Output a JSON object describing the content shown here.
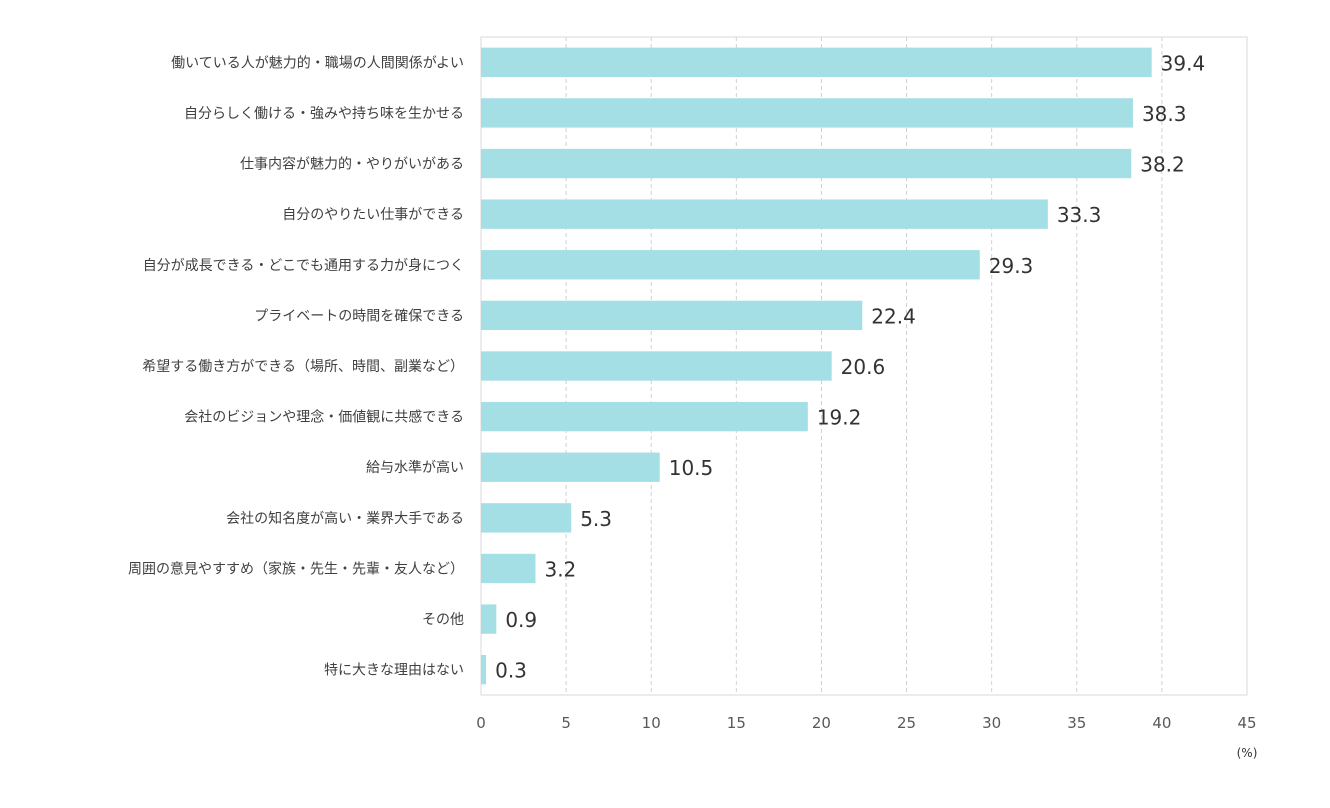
{
  "chart_data": {
    "type": "bar",
    "orientation": "horizontal",
    "categories": [
      "働いている人が魅力的・職場の人間関係がよい",
      "自分らしく働ける・強みや持ち味を生かせる",
      "仕事内容が魅力的・やりがいがある",
      "自分のやりたい仕事ができる",
      "自分が成長できる・どこでも通用する力が身につく",
      "プライベートの時間を確保できる",
      "希望する働き方ができる（場所、時間、副業など）",
      "会社のビジョンや理念・価値観に共感できる",
      "給与水準が高い",
      "会社の知名度が高い・業界大手である",
      "周囲の意見やすすめ（家族・先生・先輩・友人など）",
      "その他",
      "特に大きな理由はない"
    ],
    "values": [
      39.4,
      38.3,
      38.2,
      33.3,
      29.3,
      22.4,
      20.6,
      19.2,
      10.5,
      5.3,
      3.2,
      0.9,
      0.3
    ],
    "value_labels": [
      "39.4",
      "38.3",
      "38.2",
      "33.3",
      "29.3",
      "22.4",
      "20.6",
      "19.2",
      "10.5",
      "5.3",
      "3.2",
      "0.9",
      "0.3"
    ],
    "xticks": [
      "0",
      "5",
      "10",
      "15",
      "20",
      "25",
      "30",
      "35",
      "40",
      "45"
    ],
    "xlim": [
      0,
      45
    ],
    "unit_label": "(%)",
    "bar_color": "#a3dfe4",
    "grid": true,
    "title": "",
    "xlabel": "",
    "ylabel": ""
  }
}
